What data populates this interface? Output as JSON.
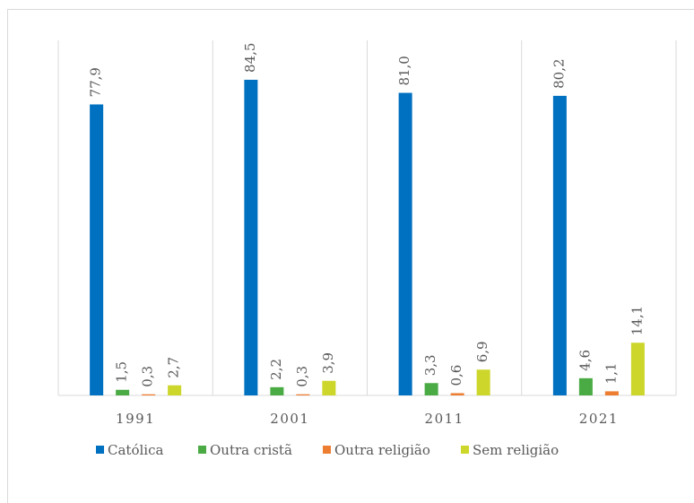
{
  "chart_data": {
    "type": "bar",
    "categories": [
      "1991",
      "2001",
      "2011",
      "2021"
    ],
    "series": [
      {
        "name": "Católica",
        "color": "#0070c0",
        "values": [
          77.9,
          84.5,
          81.0,
          80.2
        ],
        "value_labels": [
          "77,9",
          "84,5",
          "81,0",
          "80,2"
        ]
      },
      {
        "name": "Outra cristã",
        "color": "#4aab44",
        "values": [
          1.5,
          2.2,
          3.3,
          4.6
        ],
        "value_labels": [
          "1,5",
          "2,2",
          "3,3",
          "4,6"
        ]
      },
      {
        "name": "Outra religião",
        "color": "#ed7d31",
        "values": [
          0.3,
          0.3,
          0.6,
          1.1
        ],
        "value_labels": [
          "0,3",
          "0,3",
          "0,6",
          "1,1"
        ]
      },
      {
        "name": "Sem religião",
        "color": "#cdd62a",
        "values": [
          2.7,
          3.9,
          6.9,
          14.1
        ],
        "value_labels": [
          "2,7",
          "3,9",
          "6,9",
          "14,1"
        ]
      }
    ],
    "ylim": [
      0,
      88
    ]
  }
}
